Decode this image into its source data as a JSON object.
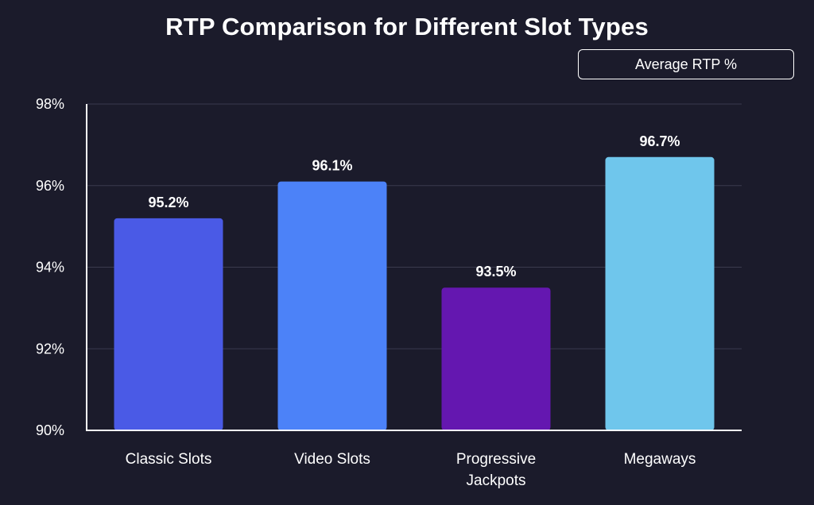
{
  "chart_data": {
    "type": "bar",
    "title": "RTP Comparison for Different Slot Types",
    "xlabel": "",
    "ylabel": "",
    "categories": [
      [
        "Classic Slots"
      ],
      [
        "Video Slots"
      ],
      [
        "Progressive",
        "Jackpots"
      ],
      [
        "Megaways"
      ]
    ],
    "series": [
      {
        "name": "Average RTP %",
        "values": [
          95.2,
          96.1,
          93.5,
          96.7
        ],
        "colors": [
          "#4a5ae6",
          "#4c82f8",
          "#6417b0",
          "#6fc6ec"
        ]
      }
    ],
    "value_labels": [
      "95.2%",
      "96.1%",
      "93.5%",
      "96.7%"
    ],
    "ylim": [
      90,
      98
    ],
    "yticks": [
      90,
      92,
      94,
      96,
      98
    ],
    "ytick_labels": [
      "90%",
      "92%",
      "94%",
      "96%",
      "98%"
    ],
    "grid": true,
    "legend_position": "top-right",
    "colors": {
      "background": "#1b1b2b",
      "grid": "#3a3a4e",
      "axis": "#ffffff",
      "text": "#ffffff"
    }
  }
}
